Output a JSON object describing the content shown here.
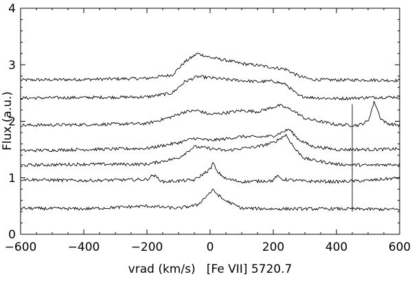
{
  "chart_data": {
    "type": "line",
    "xlabel": "vrad (km/s)   [Fe VII] 5720.7",
    "ylabel": "Flux (a.u.)",
    "xlim": [
      -600,
      600
    ],
    "ylim": [
      0,
      4
    ],
    "xticks": [
      -600,
      -400,
      -200,
      0,
      200,
      400,
      600
    ],
    "yticks": [
      0,
      1,
      2,
      3,
      4
    ],
    "grid": false,
    "legend": "none",
    "line_color": "#000000",
    "series": [
      {
        "x": [
          -600,
          -400,
          -200,
          -120,
          -80,
          -40,
          0,
          50,
          100,
          150,
          200,
          240,
          280,
          320,
          400,
          500,
          600
        ],
        "y": [
          2.73,
          2.74,
          2.76,
          2.82,
          3.05,
          3.2,
          3.13,
          3.08,
          3.02,
          2.99,
          2.95,
          2.92,
          2.8,
          2.74,
          2.73,
          2.73,
          2.72
        ]
      },
      {
        "x": [
          -600,
          -400,
          -200,
          -120,
          -80,
          -40,
          0,
          50,
          100,
          150,
          200,
          240,
          280,
          320,
          400,
          500,
          600
        ],
        "y": [
          2.41,
          2.42,
          2.43,
          2.5,
          2.7,
          2.79,
          2.77,
          2.74,
          2.72,
          2.7,
          2.71,
          2.65,
          2.45,
          2.42,
          2.4,
          2.42,
          2.43
        ]
      },
      {
        "x": [
          -600,
          -400,
          -200,
          -120,
          -80,
          -40,
          0,
          50,
          100,
          150,
          200,
          220,
          260,
          300,
          400,
          470,
          500,
          520,
          540,
          560,
          600
        ],
        "y": [
          1.93,
          1.94,
          1.96,
          2.08,
          2.17,
          2.19,
          2.12,
          2.15,
          2.19,
          2.17,
          2.25,
          2.28,
          2.2,
          2.05,
          1.94,
          1.93,
          2.0,
          2.35,
          2.05,
          1.96,
          1.93
        ]
      },
      {
        "x": [
          -600,
          -400,
          -200,
          -100,
          -50,
          0,
          50,
          100,
          150,
          200,
          250,
          280,
          320,
          400,
          500,
          600
        ],
        "y": [
          1.48,
          1.5,
          1.52,
          1.62,
          1.7,
          1.66,
          1.69,
          1.73,
          1.72,
          1.74,
          1.86,
          1.68,
          1.56,
          1.5,
          1.5,
          1.51
        ]
      },
      {
        "x": [
          -600,
          -400,
          -200,
          -100,
          -50,
          0,
          50,
          100,
          150,
          200,
          240,
          270,
          300,
          400,
          500,
          600
        ],
        "y": [
          1.22,
          1.24,
          1.24,
          1.35,
          1.55,
          1.52,
          1.48,
          1.52,
          1.55,
          1.62,
          1.76,
          1.5,
          1.34,
          1.24,
          1.22,
          1.24
        ]
      },
      {
        "x": [
          -600,
          -400,
          -200,
          -180,
          -150,
          -50,
          0,
          10,
          20,
          50,
          100,
          200,
          210,
          230,
          300,
          400,
          500,
          600
        ],
        "y": [
          0.97,
          0.95,
          0.97,
          1.05,
          0.93,
          0.96,
          1.15,
          1.27,
          1.12,
          0.98,
          0.93,
          0.95,
          1.03,
          0.97,
          0.94,
          0.93,
          0.95,
          1.0
        ]
      },
      {
        "x": [
          -600,
          -400,
          -200,
          -100,
          -40,
          0,
          10,
          40,
          100,
          200,
          400,
          600
        ],
        "y": [
          0.46,
          0.45,
          0.5,
          0.46,
          0.52,
          0.74,
          0.78,
          0.62,
          0.46,
          0.45,
          0.45,
          0.44
        ]
      },
      {
        "x": [
          450,
          450
        ],
        "y": [
          0.4,
          2.3
        ]
      }
    ]
  }
}
